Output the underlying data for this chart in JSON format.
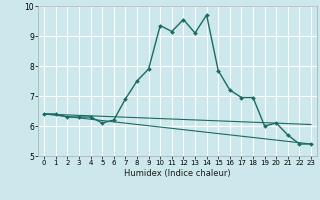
{
  "title": "",
  "xlabel": "Humidex (Indice chaleur)",
  "bg_color": "#cce8ec",
  "grid_color": "#ffffff",
  "line_color": "#1a6b60",
  "xlim": [
    -0.5,
    23.5
  ],
  "ylim": [
    5,
    10
  ],
  "xticks": [
    0,
    1,
    2,
    3,
    4,
    5,
    6,
    7,
    8,
    9,
    10,
    11,
    12,
    13,
    14,
    15,
    16,
    17,
    18,
    19,
    20,
    21,
    22,
    23
  ],
  "yticks": [
    5,
    6,
    7,
    8,
    9,
    10
  ],
  "line1_x": [
    0,
    1,
    2,
    3,
    4,
    5,
    6,
    7,
    8,
    9,
    10,
    11,
    12,
    13,
    14,
    15,
    16,
    17,
    18,
    19,
    20,
    21,
    22,
    23
  ],
  "line1_y": [
    6.4,
    6.4,
    6.3,
    6.3,
    6.3,
    6.1,
    6.2,
    6.9,
    7.5,
    7.9,
    9.35,
    9.15,
    9.55,
    9.1,
    9.7,
    7.85,
    7.2,
    6.95,
    6.95,
    6.0,
    6.1,
    5.7,
    5.4,
    5.4
  ],
  "line2_x": [
    0,
    23
  ],
  "line2_y": [
    6.4,
    5.4
  ],
  "line3_x": [
    0,
    23
  ],
  "line3_y": [
    6.4,
    6.05
  ]
}
